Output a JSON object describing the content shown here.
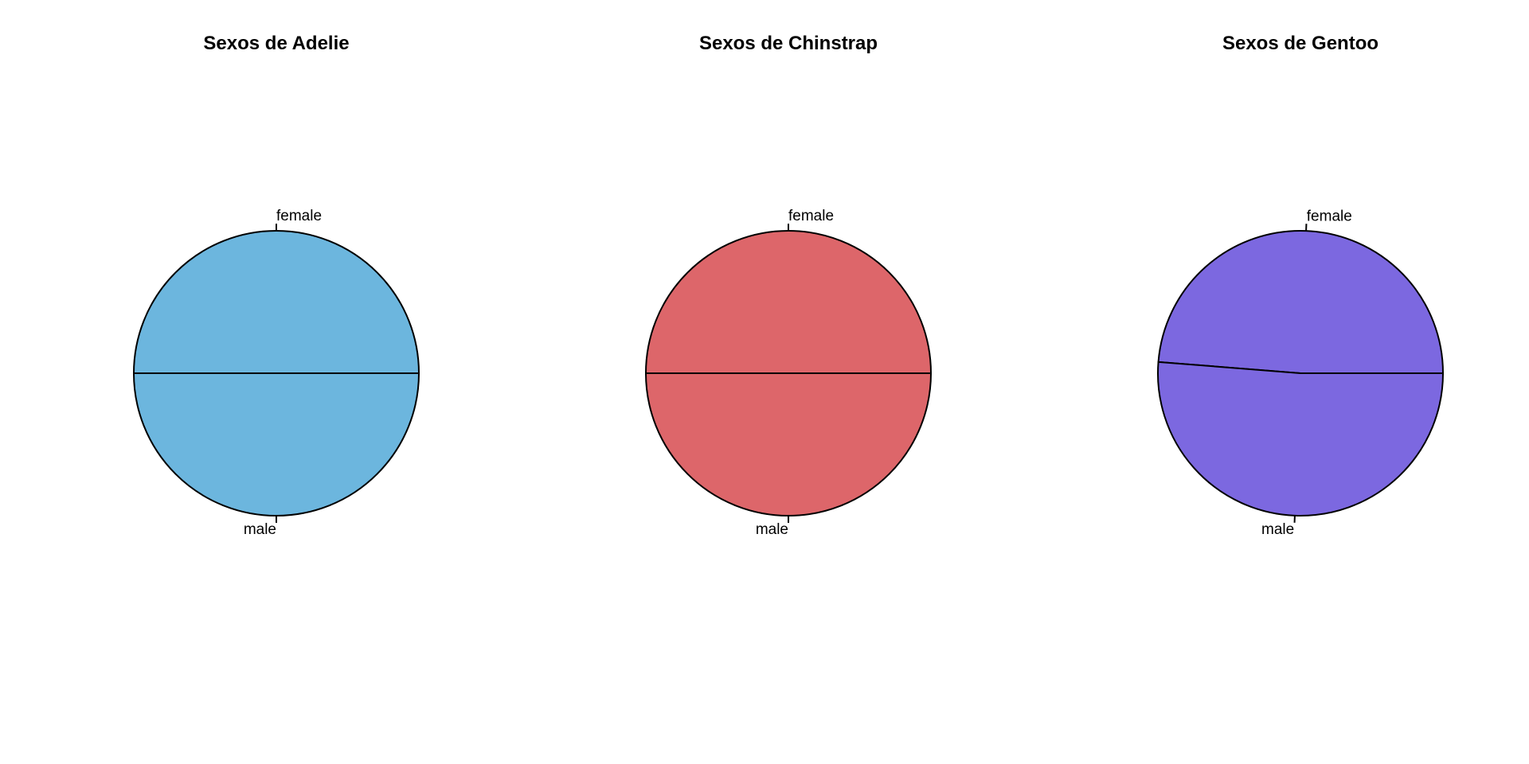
{
  "chart_data": [
    {
      "type": "pie",
      "title": "Sexos de Adelie",
      "color": "#6CB6DE",
      "slices": [
        {
          "label": "female",
          "value": 73
        },
        {
          "label": "male",
          "value": 73
        }
      ]
    },
    {
      "type": "pie",
      "title": "Sexos de Chinstrap",
      "color": "#DD666A",
      "slices": [
        {
          "label": "female",
          "value": 34
        },
        {
          "label": "male",
          "value": 34
        }
      ]
    },
    {
      "type": "pie",
      "title": "Sexos de Gentoo",
      "color": "#7C68E0",
      "slices": [
        {
          "label": "female",
          "value": 58
        },
        {
          "label": "male",
          "value": 61
        }
      ]
    }
  ]
}
